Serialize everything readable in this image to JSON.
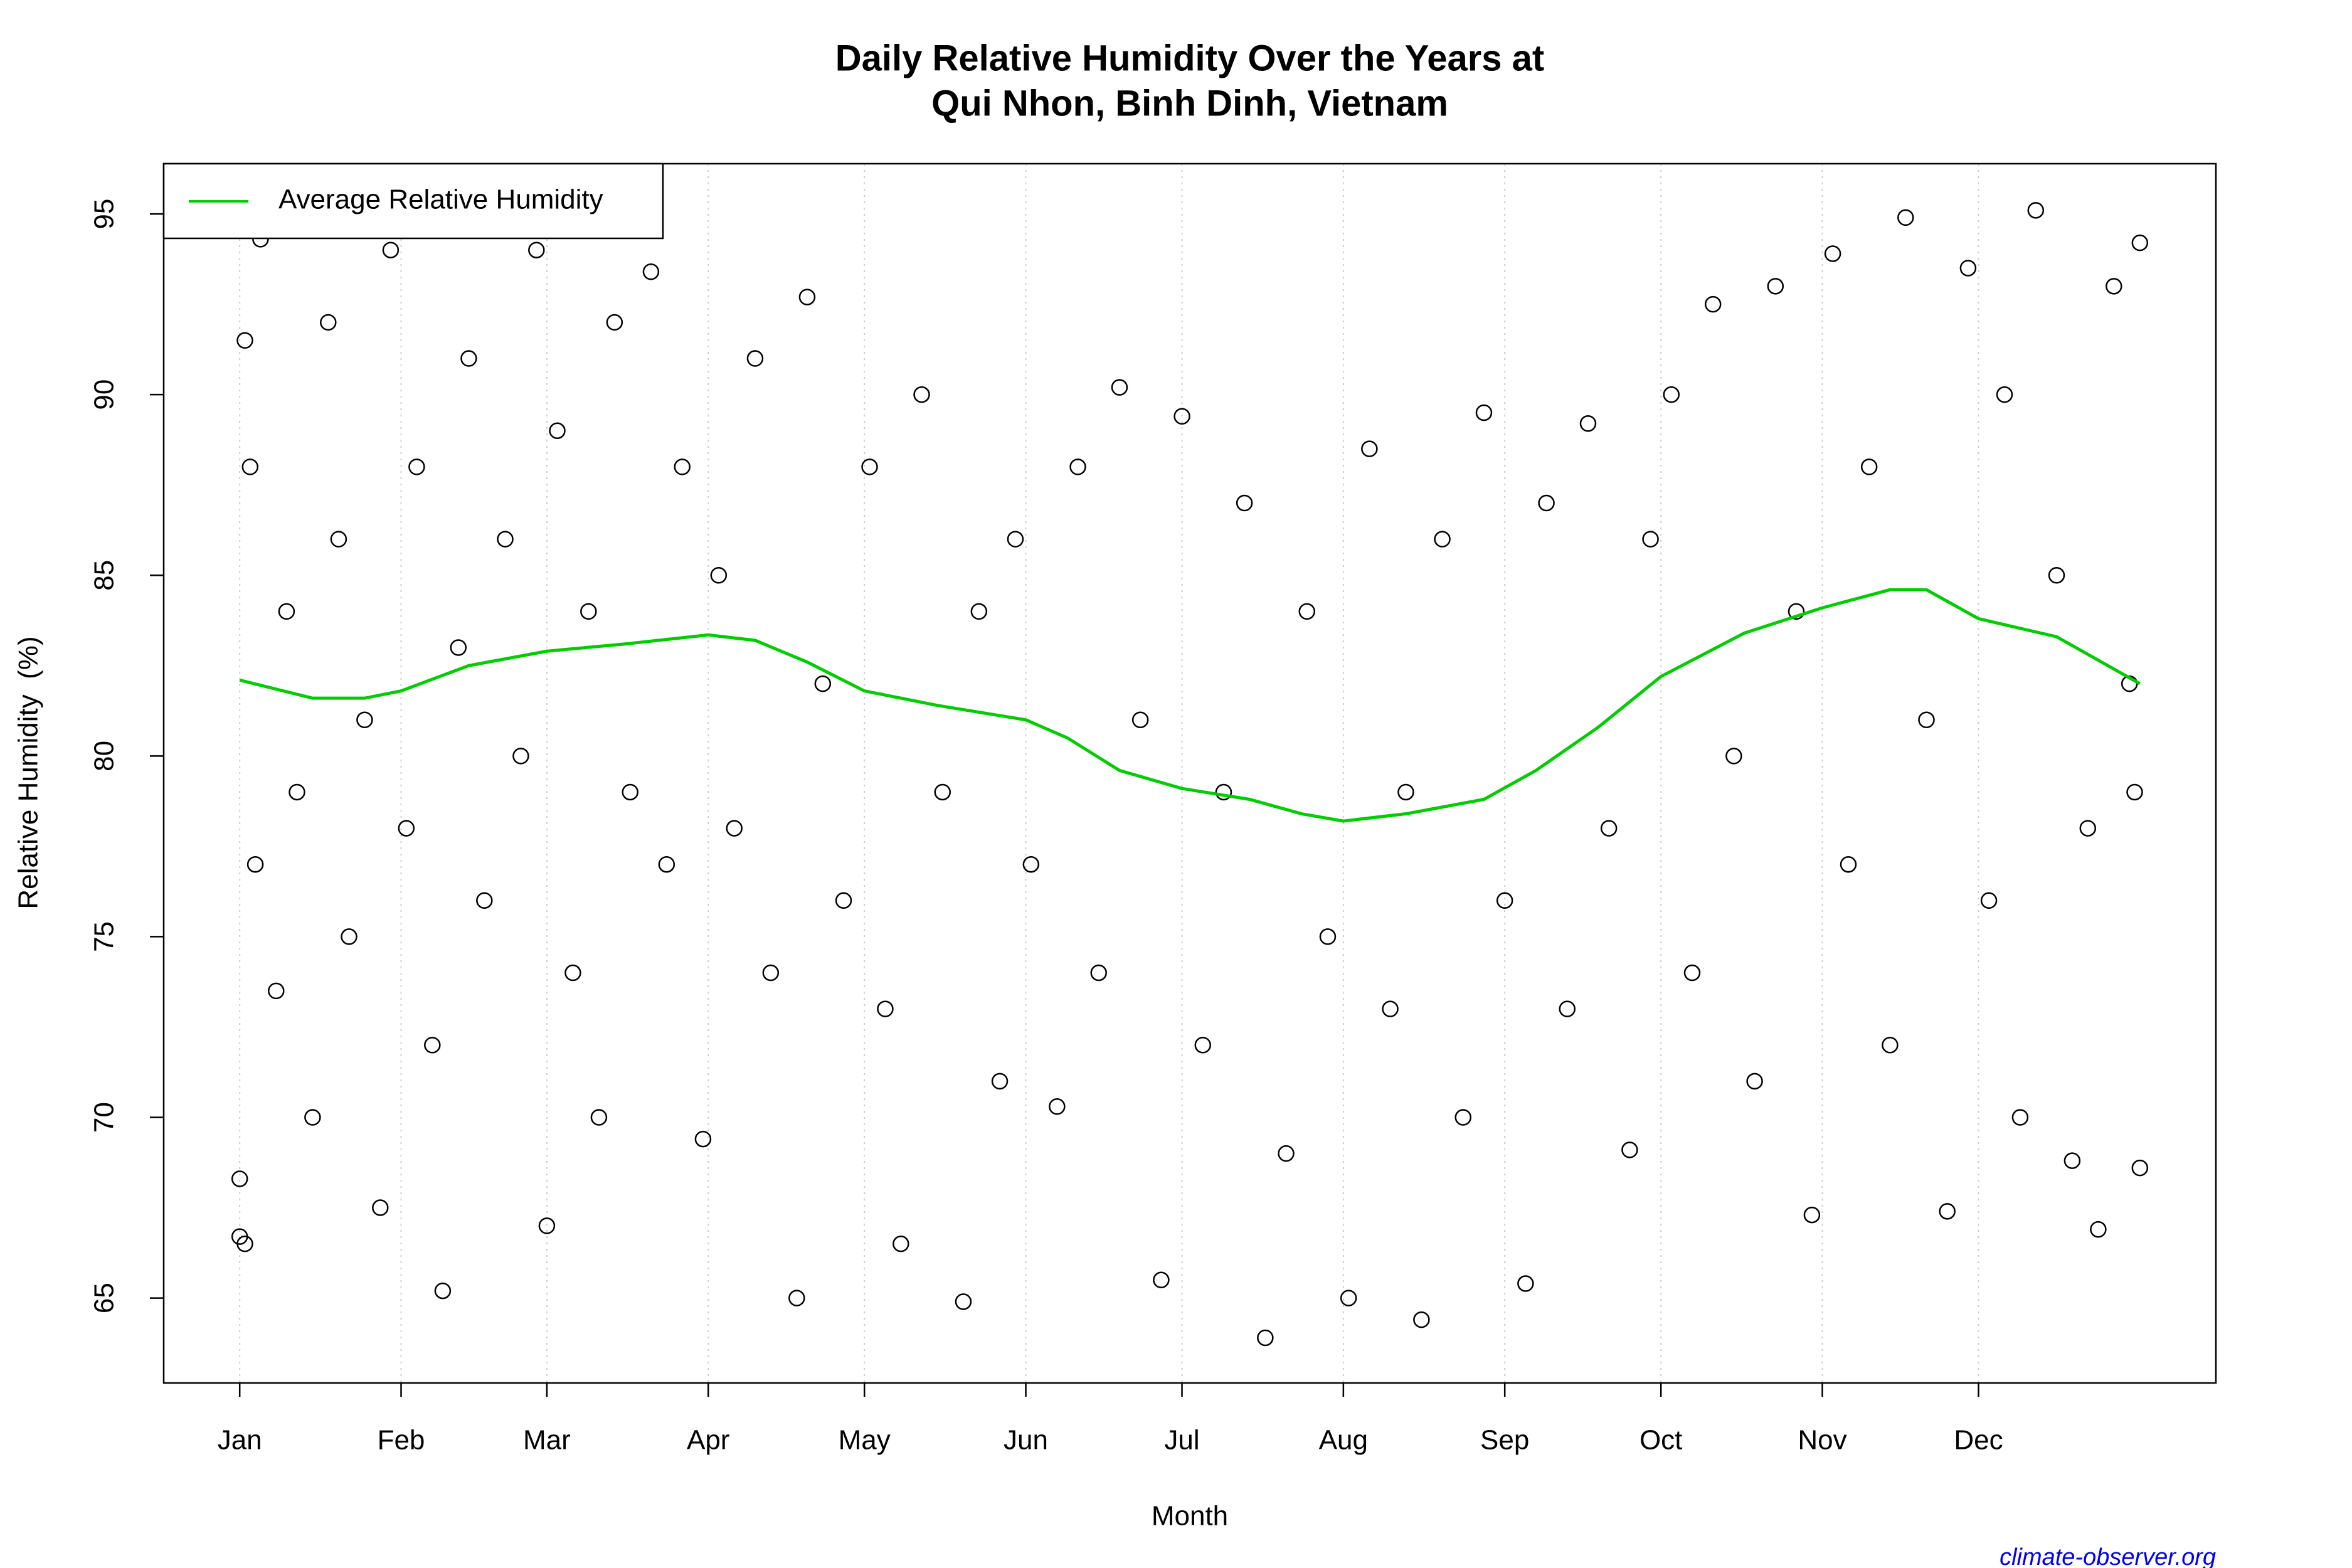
{
  "chart_data": {
    "type": "scatter",
    "title": [
      "Daily Relative Humidity Over the Years at",
      "Qui Nhon, Binh Dinh, Vietnam"
    ],
    "xlabel": "Month",
    "ylabel": "Relative Humidity  (%)",
    "source": "climate-observer.org",
    "xlim": [
      -13.6,
      380.6
    ],
    "ylim": [
      62.65,
      96.39
    ],
    "xticks": [
      {
        "value": 1,
        "label": "Jan"
      },
      {
        "value": 32,
        "label": "Feb"
      },
      {
        "value": 60,
        "label": "Mar"
      },
      {
        "value": 91,
        "label": "Apr"
      },
      {
        "value": 121,
        "label": "May"
      },
      {
        "value": 152,
        "label": "Jun"
      },
      {
        "value": 182,
        "label": "Jul"
      },
      {
        "value": 213,
        "label": "Aug"
      },
      {
        "value": 244,
        "label": "Sep"
      },
      {
        "value": 274,
        "label": "Oct"
      },
      {
        "value": 305,
        "label": "Nov"
      },
      {
        "value": 335,
        "label": "Dec"
      }
    ],
    "yticks": [
      65,
      70,
      75,
      80,
      85,
      90,
      95
    ],
    "grid": true,
    "legend": "top-left",
    "points": {
      "color": "#000000",
      "x": [
        1,
        2,
        1,
        2,
        3,
        4,
        5,
        8,
        10,
        12,
        15,
        18,
        20,
        22,
        25,
        28,
        30,
        33,
        35,
        38,
        40,
        43,
        45,
        48,
        52,
        55,
        58,
        60,
        62,
        65,
        68,
        70,
        73,
        76,
        80,
        83,
        86,
        90,
        93,
        96,
        100,
        103,
        108,
        110,
        113,
        117,
        122,
        125,
        128,
        132,
        136,
        140,
        143,
        147,
        150,
        153,
        158,
        162,
        166,
        170,
        174,
        178,
        182,
        186,
        190,
        194,
        198,
        202,
        206,
        210,
        214,
        218,
        222,
        225,
        228,
        232,
        236,
        240,
        244,
        248,
        252,
        256,
        260,
        264,
        268,
        272,
        276,
        280,
        284,
        288,
        292,
        296,
        300,
        303,
        307,
        310,
        314,
        318,
        321,
        325,
        329,
        333,
        337,
        340,
        343,
        346,
        350,
        353,
        356,
        358,
        361,
        364,
        366,
        366,
        365
      ],
      "values": [
        66.7,
        66.5,
        68.3,
        91.5,
        88,
        77,
        94.3,
        73.5,
        84,
        79,
        70,
        92,
        86,
        75,
        81,
        67.5,
        94,
        78,
        88,
        72,
        65.2,
        83,
        91,
        76,
        86,
        80,
        94,
        67,
        89,
        74,
        84,
        70,
        92,
        79,
        93.4,
        77,
        88,
        69.4,
        85,
        78,
        91,
        74,
        65,
        92.7,
        82,
        76,
        88,
        73,
        66.5,
        90,
        79,
        64.9,
        84,
        71,
        86,
        77,
        70.3,
        88,
        74,
        90.2,
        81,
        65.5,
        89.4,
        72,
        79,
        87,
        63.9,
        69,
        84,
        75,
        65,
        88.5,
        73,
        79,
        64.4,
        86,
        70,
        89.5,
        76,
        65.4,
        87,
        73,
        89.2,
        78,
        69.1,
        86,
        90,
        74,
        92.5,
        80,
        71,
        93,
        84,
        67.3,
        93.9,
        77,
        88,
        72,
        94.9,
        81,
        67.4,
        93.5,
        76,
        90,
        70,
        95.1,
        85,
        68.8,
        78,
        66.9,
        93,
        82,
        94.2,
        68.6,
        79
      ]
    },
    "series": [
      {
        "name": "Average Relative Humidity",
        "color": "#00cc00",
        "x": [
          1,
          15,
          25,
          32,
          45,
          60,
          75,
          91,
          100,
          110,
          121,
          135,
          152,
          160,
          170,
          182,
          195,
          205,
          213,
          225,
          240,
          250,
          262,
          274,
          290,
          305,
          318,
          325,
          335,
          350,
          366
        ],
        "values": [
          82.1,
          81.6,
          81.6,
          81.8,
          82.5,
          82.9,
          83.1,
          83.35,
          83.2,
          82.6,
          81.8,
          81.4,
          81.0,
          80.5,
          79.6,
          79.1,
          78.8,
          78.4,
          78.2,
          78.4,
          78.8,
          79.6,
          80.8,
          82.2,
          83.4,
          84.1,
          84.6,
          84.6,
          83.8,
          83.3,
          82.0
        ]
      }
    ]
  }
}
